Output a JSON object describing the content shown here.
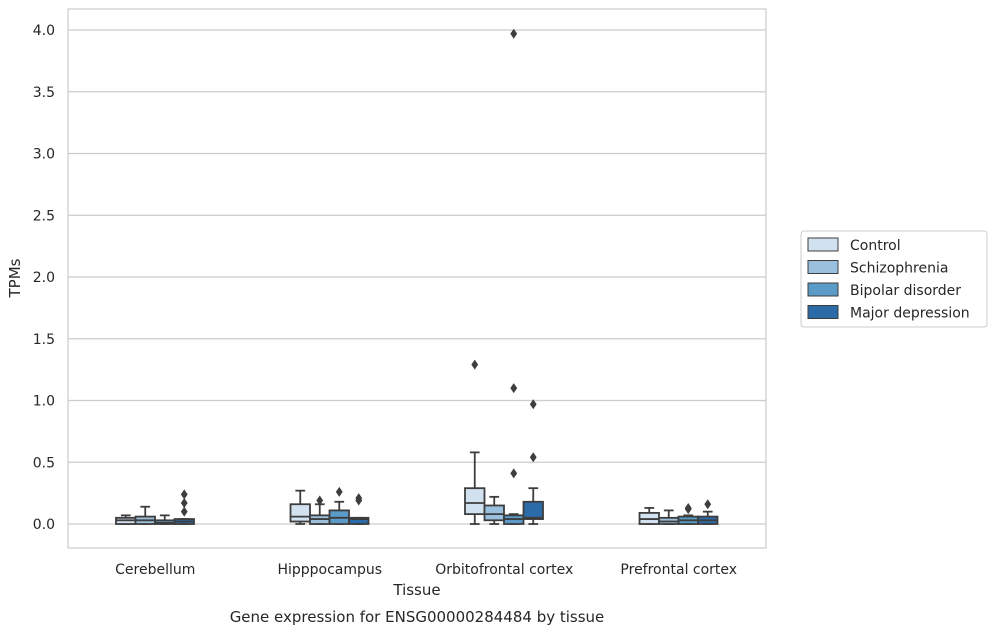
{
  "chart_data": {
    "type": "box",
    "title": "",
    "caption": "Gene expression for ENSG00000284484 by tissue",
    "xlabel": "Tissue",
    "ylabel": "TPMs",
    "ylim": [
      -0.2,
      4.18
    ],
    "yticks": [
      "0.0",
      "0.5",
      "1.0",
      "1.5",
      "2.0",
      "2.5",
      "3.0",
      "3.5",
      "4.0"
    ],
    "grid": "horizontal",
    "legend_position": "right",
    "categories": [
      "Cerebellum",
      "Hipppocampus",
      "Orbitofrontal cortex",
      "Prefrontal cortex"
    ],
    "series": [
      {
        "name": "Control",
        "color": "#d2e1f0",
        "boxes": [
          {
            "q1": 0.0,
            "median": 0.03,
            "q3": 0.05,
            "wlow": 0.0,
            "whigh": 0.07,
            "outliers": []
          },
          {
            "q1": 0.02,
            "median": 0.06,
            "q3": 0.16,
            "wlow": 0.0,
            "whigh": 0.27,
            "outliers": []
          },
          {
            "q1": 0.08,
            "median": 0.17,
            "q3": 0.29,
            "wlow": 0.0,
            "whigh": 0.58,
            "outliers": [
              1.29
            ]
          },
          {
            "q1": 0.0,
            "median": 0.04,
            "q3": 0.09,
            "wlow": 0.0,
            "whigh": 0.13,
            "outliers": []
          }
        ]
      },
      {
        "name": "Schizophrenia",
        "color": "#9ac0dd",
        "boxes": [
          {
            "q1": 0.0,
            "median": 0.03,
            "q3": 0.06,
            "wlow": 0.0,
            "whigh": 0.14,
            "outliers": []
          },
          {
            "q1": 0.0,
            "median": 0.04,
            "q3": 0.07,
            "wlow": 0.0,
            "whigh": 0.16,
            "outliers": [
              0.19
            ]
          },
          {
            "q1": 0.03,
            "median": 0.08,
            "q3": 0.15,
            "wlow": 0.0,
            "whigh": 0.22,
            "outliers": []
          },
          {
            "q1": 0.0,
            "median": 0.02,
            "q3": 0.05,
            "wlow": 0.0,
            "whigh": 0.11,
            "outliers": []
          }
        ]
      },
      {
        "name": "Bipolar disorder",
        "color": "#5a9bc8",
        "boxes": [
          {
            "q1": 0.0,
            "median": 0.01,
            "q3": 0.03,
            "wlow": 0.0,
            "whigh": 0.07,
            "outliers": []
          },
          {
            "q1": 0.0,
            "median": 0.05,
            "q3": 0.11,
            "wlow": 0.0,
            "whigh": 0.18,
            "outliers": [
              0.26
            ]
          },
          {
            "q1": 0.0,
            "median": 0.04,
            "q3": 0.07,
            "wlow": 0.0,
            "whigh": 0.08,
            "outliers": [
              0.41,
              1.1,
              3.97
            ]
          },
          {
            "q1": 0.0,
            "median": 0.03,
            "q3": 0.06,
            "wlow": 0.0,
            "whigh": 0.07,
            "outliers": [
              0.12,
              0.13
            ]
          }
        ]
      },
      {
        "name": "Major depression",
        "color": "#2b6ba8",
        "boxes": [
          {
            "q1": 0.0,
            "median": 0.02,
            "q3": 0.04,
            "wlow": 0.0,
            "whigh": 0.04,
            "outliers": [
              0.1,
              0.17,
              0.24
            ]
          },
          {
            "q1": 0.0,
            "median": 0.04,
            "q3": 0.05,
            "wlow": 0.0,
            "whigh": 0.05,
            "outliers": [
              0.19,
              0.21
            ]
          },
          {
            "q1": 0.04,
            "median": 0.05,
            "q3": 0.18,
            "wlow": 0.0,
            "whigh": 0.29,
            "outliers": [
              0.54,
              0.97
            ]
          },
          {
            "q1": 0.0,
            "median": 0.03,
            "q3": 0.06,
            "wlow": 0.0,
            "whigh": 0.1,
            "outliers": [
              0.16
            ]
          }
        ]
      }
    ]
  }
}
